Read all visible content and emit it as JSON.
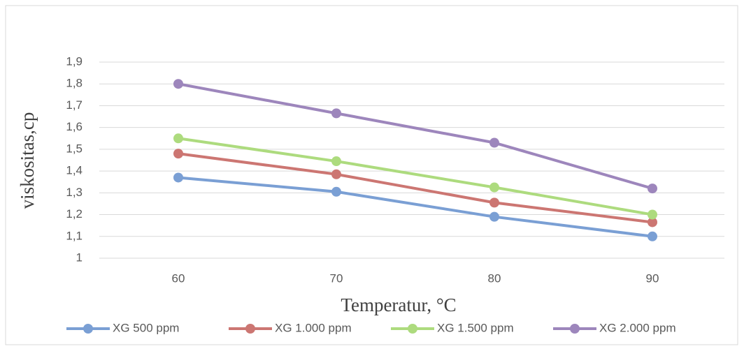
{
  "chart_data": {
    "type": "line",
    "x_label": "Temperatur, °C",
    "y_label": "viskositas,cp",
    "categories": [
      "60",
      "70",
      "80",
      "90"
    ],
    "series": [
      {
        "name": "XG 500 ppm",
        "color": "#7a9fd4",
        "values": [
          1.37,
          1.305,
          1.19,
          1.1
        ]
      },
      {
        "name": "XG 1.000 ppm",
        "color": "#cc7672",
        "values": [
          1.48,
          1.385,
          1.255,
          1.165
        ]
      },
      {
        "name": "XG 1.500 ppm",
        "color": "#addb7e",
        "values": [
          1.55,
          1.445,
          1.325,
          1.2
        ]
      },
      {
        "name": "XG 2.000 ppm",
        "color": "#9d86bc",
        "values": [
          1.8,
          1.665,
          1.53,
          1.32
        ]
      }
    ],
    "ylim": [
      1,
      1.9
    ],
    "yticks": [
      1,
      {
        "value": 1.1,
        "label": "1,1"
      },
      {
        "value": 1.2,
        "label": "1,2"
      },
      {
        "value": 1.3,
        "label": "1,3"
      },
      {
        "value": 1.4,
        "label": "1,4"
      },
      {
        "value": 1.5,
        "label": "1,5"
      },
      {
        "value": 1.6,
        "label": "1,6"
      },
      {
        "value": 1.7,
        "label": "1,7"
      },
      {
        "value": 1.8,
        "label": "1,8"
      },
      {
        "value": 1.9,
        "label": "1,9"
      }
    ],
    "grid": true,
    "legend": "bottom"
  }
}
